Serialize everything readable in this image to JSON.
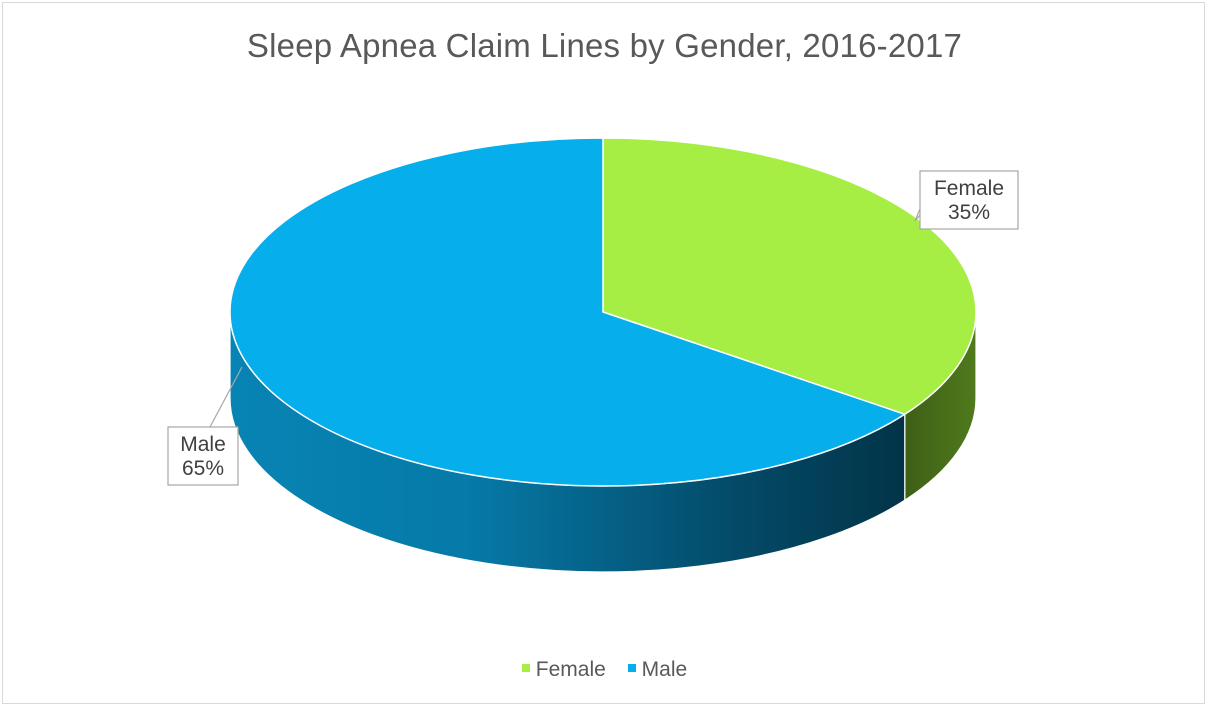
{
  "colors": {
    "female": "#a6ed44",
    "male": "#06aeeb"
  },
  "chart_data": {
    "type": "pie",
    "title": "Sleep Apnea Claim Lines by Gender, 2016-2017",
    "style": "3d",
    "legend_position": "bottom",
    "slices": [
      {
        "label": "Female",
        "value": 35,
        "display": "35%"
      },
      {
        "label": "Male",
        "value": 65,
        "display": "65%"
      }
    ],
    "legend": [
      "Female",
      "Male"
    ]
  }
}
